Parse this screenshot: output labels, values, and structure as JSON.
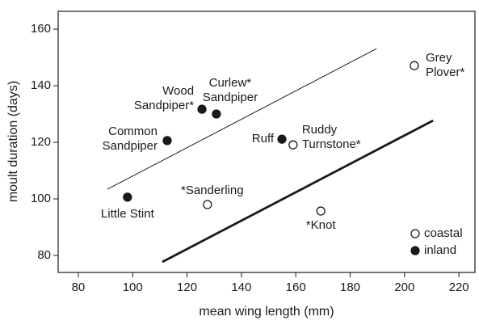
{
  "chart_data": {
    "type": "scatter",
    "x_label": "mean wing length (mm)",
    "y_label": "moult duration (days)",
    "xlim": [
      72.6,
      225.9
    ],
    "xticks": [
      80,
      100,
      120,
      140,
      160,
      180,
      200,
      220
    ],
    "ylim": [
      74,
      166.3
    ],
    "yticks": [
      80,
      100,
      120,
      140,
      160
    ],
    "series": [
      {
        "name": "coastal",
        "marker": "open",
        "color": "#1a1a1a",
        "x": [
          127.5,
          159,
          169.2,
          203.6
        ],
        "values": [
          98,
          119.1,
          95.7,
          147.1
        ],
        "labels": [
          [
            "*Sanderling"
          ],
          [
            "Ruddy",
            "Turnstone*"
          ],
          [
            "*Knot"
          ],
          [
            "Grey",
            "Plover*"
          ]
        ]
      },
      {
        "name": "inland",
        "marker": "filled",
        "color": "#1a1a1a",
        "x": [
          98.1,
          112.7,
          125.5,
          130.8,
          154.9
        ],
        "values": [
          100.6,
          120.6,
          131.7,
          130,
          121.1
        ],
        "labels": [
          [
            "Little Stint"
          ],
          [
            "Common",
            "Sandpiper"
          ],
          [
            "Wood",
            "Sandpiper*"
          ],
          [
            "Curlew*",
            "Sandpiper"
          ],
          [
            "Ruff"
          ]
        ]
      }
    ],
    "lines": [
      {
        "style": "thin",
        "x": [
          90.7,
          189.7
        ],
        "values": [
          103.4,
          153.1
        ]
      },
      {
        "style": "thick",
        "x": [
          110.9,
          210.5
        ],
        "values": [
          77.7,
          127.7
        ]
      }
    ]
  }
}
